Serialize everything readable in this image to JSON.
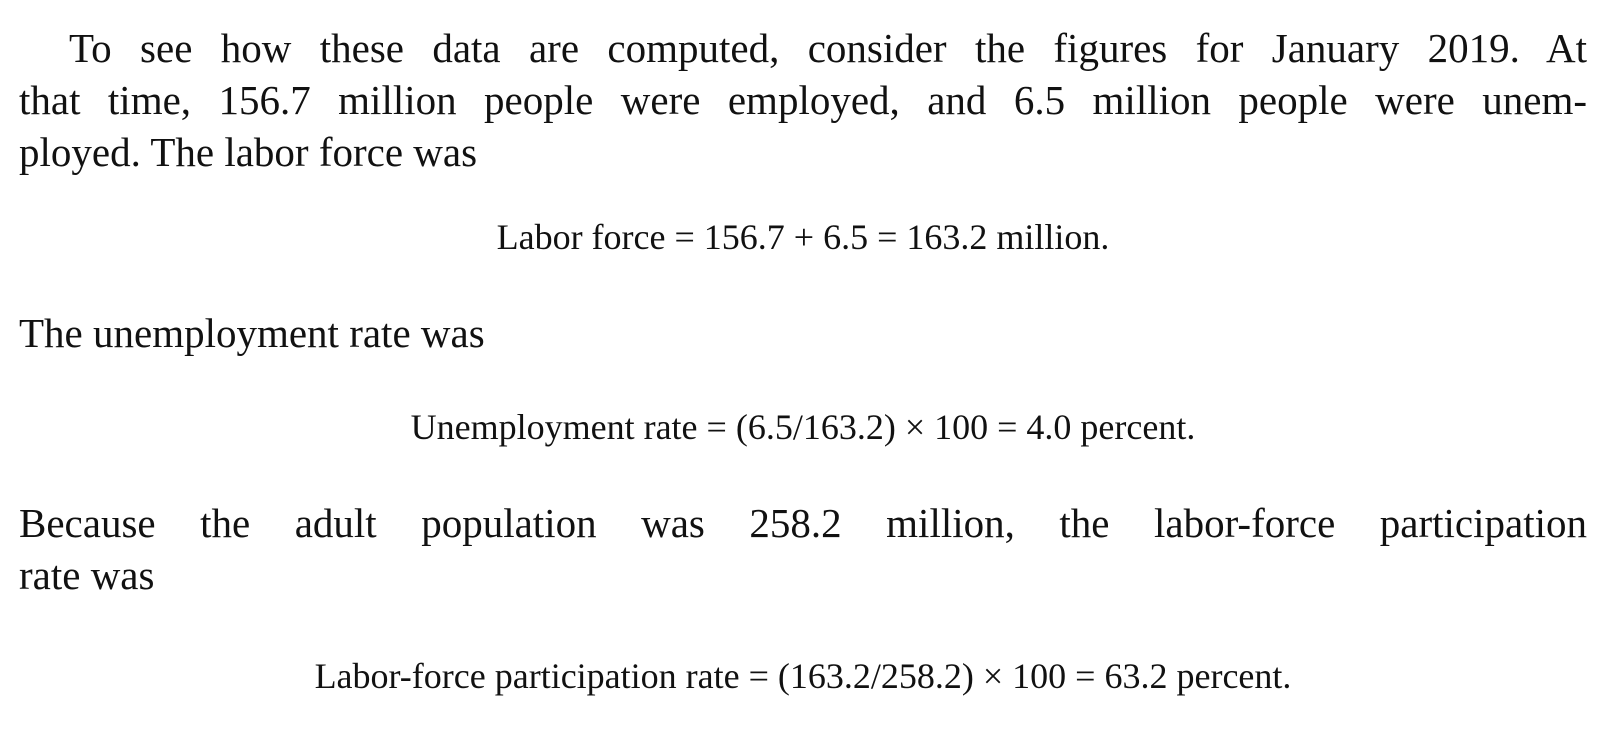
{
  "paragraphs": {
    "p1_line1": "To see how these data are computed, consider the figures for January 2019. At",
    "p1_line2": "that time, 156.7 million people were employed, and 6.5 million people were unem-",
    "p1_line3": "ployed. The labor force was",
    "p2": "The unemployment rate was",
    "p3_line1": "Because the adult population was 258.2 million, the labor-force participation",
    "p3_line2": "rate was"
  },
  "equations": {
    "labor_force": "Labor force = 156.7 + 6.5 = 163.2 million.",
    "unemployment_rate": "Unemployment rate = (6.5/163.2) × 100 = 4.0 percent.",
    "participation_rate": "Labor-force participation rate = (163.2/258.2) × 100 = 63.2 percent."
  }
}
